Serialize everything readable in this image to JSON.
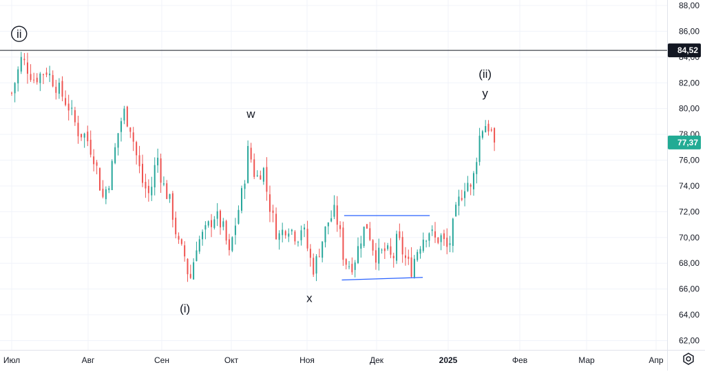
{
  "chart_data": {
    "type": "candlestick",
    "y_axis": {
      "ticks": [
        "88,00",
        "86,00",
        "84,00",
        "82,00",
        "80,00",
        "78,00",
        "76,00",
        "74,00",
        "72,00",
        "70,00",
        "68,00",
        "66,00",
        "64,00",
        "62,00"
      ],
      "tick_values": [
        88,
        86,
        84,
        82,
        80,
        78,
        76,
        74,
        72,
        70,
        68,
        66,
        64,
        62
      ],
      "range": [
        61.2,
        88.4
      ]
    },
    "x_axis": {
      "labels": [
        "Июл",
        "Авг",
        "Сен",
        "Окт",
        "Ноя",
        "Дек",
        "2025",
        "Фев",
        "Мар",
        "Апр"
      ],
      "bold_label": "2025",
      "label_dates": [
        "2024-07-01",
        "2024-08-01",
        "2024-09-01",
        "2024-10-01",
        "2024-11-01",
        "2024-12-01",
        "2025-01-01",
        "2025-02-01",
        "2025-03-01",
        "2025-04-01"
      ]
    },
    "price_path": [
      [
        "2024-07-01",
        81.2
      ],
      [
        "2024-07-05",
        83.9
      ],
      [
        "2024-07-10",
        82.3
      ],
      [
        "2024-07-15",
        83.0
      ],
      [
        "2024-07-20",
        81.5
      ],
      [
        "2024-07-24",
        80.2
      ],
      [
        "2024-07-28",
        78.2
      ],
      [
        "2024-07-31",
        77.9
      ],
      [
        "2024-08-04",
        76.0
      ],
      [
        "2024-08-07",
        73.0
      ],
      [
        "2024-08-10",
        74.5
      ],
      [
        "2024-08-14",
        78.5
      ],
      [
        "2024-08-16",
        79.8
      ],
      [
        "2024-08-19",
        78.5
      ],
      [
        "2024-08-21",
        76.6
      ],
      [
        "2024-08-24",
        74.2
      ],
      [
        "2024-08-27",
        73.2
      ],
      [
        "2024-08-30",
        76.5
      ],
      [
        "2024-09-01",
        74.4
      ],
      [
        "2024-09-05",
        72.5
      ],
      [
        "2024-09-08",
        69.5
      ],
      [
        "2024-09-11",
        68.5
      ],
      [
        "2024-09-13",
        66.5
      ],
      [
        "2024-09-16",
        69.5
      ],
      [
        "2024-09-20",
        70.5
      ],
      [
        "2024-09-24",
        71.8
      ],
      [
        "2024-09-28",
        70.5
      ],
      [
        "2024-09-30",
        68.5
      ],
      [
        "2024-10-02",
        70.5
      ],
      [
        "2024-10-06",
        74.0
      ],
      [
        "2024-10-08",
        77.0
      ],
      [
        "2024-10-11",
        74.5
      ],
      [
        "2024-10-14",
        75.5
      ],
      [
        "2024-10-16",
        73.0
      ],
      [
        "2024-10-20",
        70.0
      ],
      [
        "2024-10-24",
        71.0
      ],
      [
        "2024-10-28",
        70.0
      ],
      [
        "2024-10-30",
        71.0
      ],
      [
        "2024-11-02",
        68.5
      ],
      [
        "2024-11-04",
        67.5
      ],
      [
        "2024-11-07",
        69.5
      ],
      [
        "2024-11-10",
        71.2
      ],
      [
        "2024-11-13",
        72.0
      ],
      [
        "2024-11-15",
        70.5
      ],
      [
        "2024-11-17",
        68.2
      ],
      [
        "2024-11-20",
        67.8
      ],
      [
        "2024-11-22",
        68.5
      ],
      [
        "2024-11-25",
        70.5
      ],
      [
        "2024-11-27",
        71.0
      ],
      [
        "2024-11-29",
        69.5
      ],
      [
        "2024-12-01",
        68.5
      ],
      [
        "2024-12-05",
        69.0
      ],
      [
        "2024-12-08",
        68.2
      ],
      [
        "2024-12-10",
        70.0
      ],
      [
        "2024-12-13",
        68.5
      ],
      [
        "2024-12-16",
        67.5
      ],
      [
        "2024-12-18",
        68.8
      ],
      [
        "2024-12-21",
        70.0
      ],
      [
        "2024-12-24",
        70.6
      ],
      [
        "2024-12-26",
        69.8
      ],
      [
        "2024-12-29",
        70.0
      ],
      [
        "2025-01-01",
        69.0
      ],
      [
        "2025-01-03",
        70.8
      ],
      [
        "2025-01-05",
        72.5
      ],
      [
        "2025-01-07",
        73.5
      ],
      [
        "2025-01-09",
        74.5
      ],
      [
        "2025-01-11",
        73.5
      ],
      [
        "2025-01-13",
        76.0
      ],
      [
        "2025-01-15",
        78.3
      ],
      [
        "2025-01-17",
        78.8
      ],
      [
        "2025-01-19",
        78.5
      ],
      [
        "2025-01-21",
        77.37
      ]
    ],
    "candle_count": 160,
    "horizontal_lines": [
      {
        "value": 84.52,
        "label": "84,52",
        "color": "#131722"
      }
    ],
    "segments": [
      {
        "from": [
          "2024-11-17",
          71.7
        ],
        "to": [
          "2024-12-24",
          71.7
        ],
        "color": "#2962ff"
      },
      {
        "from": [
          "2024-11-16",
          66.7
        ],
        "to": [
          "2024-12-21",
          66.9
        ],
        "color": "#2962ff"
      }
    ],
    "last_price": {
      "value": 77.37,
      "label": "77,37",
      "color": "#22ab94"
    },
    "annotations": [
      {
        "text": "ii",
        "circled": true,
        "date": "2024-07-04",
        "value": 85.8
      },
      {
        "text": "w",
        "date": "2024-10-09",
        "value": 79.6
      },
      {
        "text": "(i)",
        "date": "2024-09-11",
        "value": 64.5
      },
      {
        "text": "x",
        "date": "2024-11-02",
        "value": 65.3
      },
      {
        "text": "(ii)",
        "date": "2025-01-17",
        "value": 82.7
      },
      {
        "text": "y",
        "date": "2025-01-17",
        "value": 81.2
      }
    ],
    "colors": {
      "up": "#26a69a",
      "down": "#ef5350",
      "grid": "#f0f3fa",
      "axis_text": "#131722"
    },
    "grid": true
  },
  "icons": {
    "settings": "settings-icon"
  }
}
